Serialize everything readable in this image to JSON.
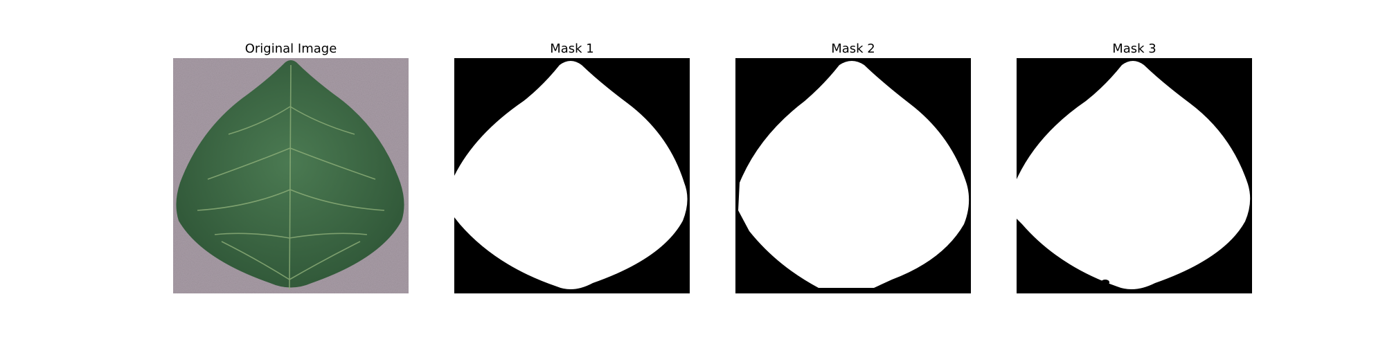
{
  "figure": {
    "panels": [
      {
        "title": "Original Image",
        "kind": "photo",
        "content": "leaf-photo"
      },
      {
        "title": "Mask 1",
        "kind": "mask",
        "content": "leaf-mask"
      },
      {
        "title": "Mask 2",
        "kind": "mask",
        "content": "leaf-mask"
      },
      {
        "title": "Mask 3",
        "kind": "mask",
        "content": "leaf-mask"
      }
    ]
  },
  "colors": {
    "background_gray": "#a89ca6",
    "leaf_green": "#3e6b45",
    "leaf_dark": "#2f5637",
    "vein_light": "#8fb07a",
    "mask_foreground": "#ffffff",
    "mask_background": "#000000"
  }
}
